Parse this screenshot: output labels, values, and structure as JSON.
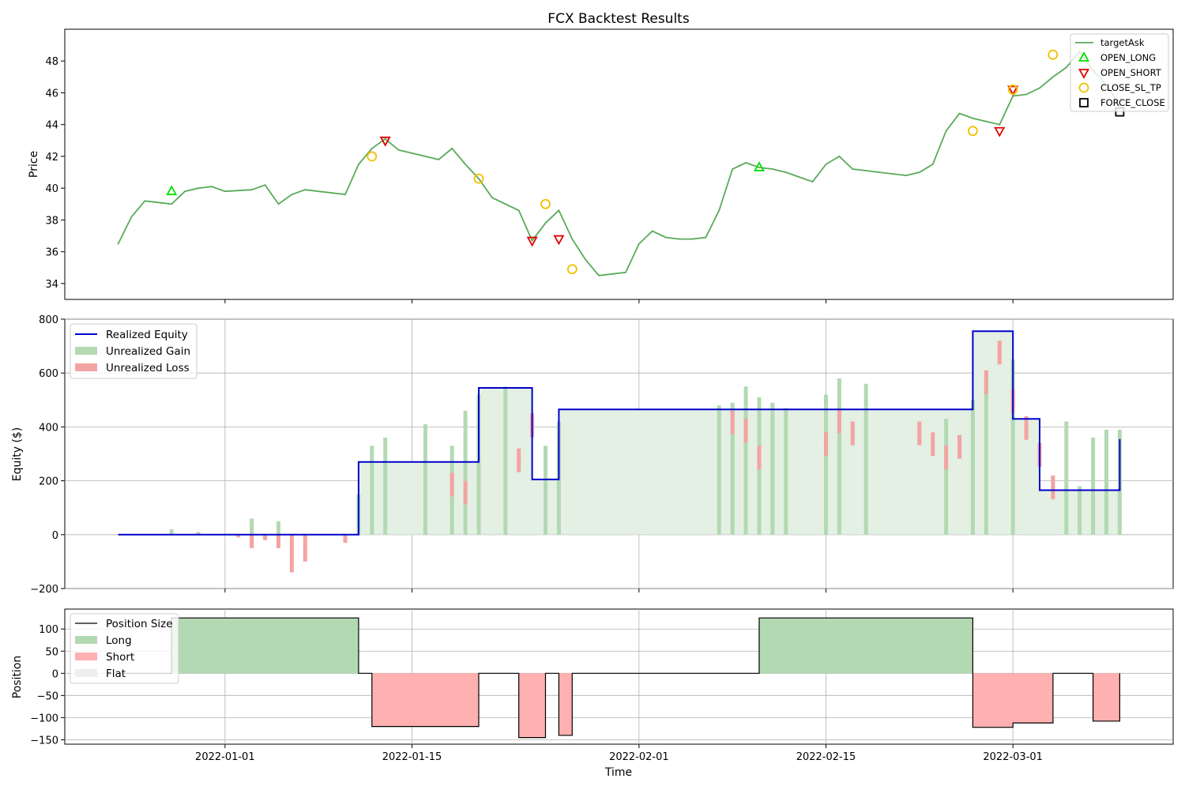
{
  "figure": {
    "title": "FCX Backtest Results",
    "xlabel": "Time"
  },
  "colors": {
    "price": "#5aaa5a",
    "long_marker": "#00e000",
    "short_marker": "#e00000",
    "close_marker": "#f0c000",
    "force_marker": "#000000",
    "equity": "#0000cc",
    "gain_fill": "#b3d9b3",
    "loss_fill": "#f4a3a3",
    "base_fill": "#e3f0e3",
    "long_fill": "#b3d9b3",
    "short_fill": "#ffb0b0",
    "flat_fill": "#eeeeee",
    "grid": "#b0b0b0"
  },
  "chart_data": [
    {
      "type": "line",
      "panel": "price",
      "ylabel": "Price",
      "ylim": [
        33,
        50
      ],
      "yticks": [
        34,
        36,
        38,
        40,
        42,
        44,
        46,
        48
      ],
      "grid": false,
      "legend_position": "top-right",
      "x_is_date": true,
      "xlim": [
        "2021-12-20",
        "2022-03-13"
      ],
      "series": [
        {
          "name": "targetAsk",
          "x": [
            "2021-12-24",
            "2021-12-25",
            "2021-12-26",
            "2021-12-27",
            "2021-12-28",
            "2021-12-29",
            "2021-12-30",
            "2021-12-31",
            "2022-01-01",
            "2022-01-02",
            "2022-01-03",
            "2022-01-04",
            "2022-01-05",
            "2022-01-06",
            "2022-01-07",
            "2022-01-08",
            "2022-01-09",
            "2022-01-10",
            "2022-01-11",
            "2022-01-12",
            "2022-01-13",
            "2022-01-14",
            "2022-01-15",
            "2022-01-16",
            "2022-01-17",
            "2022-01-18",
            "2022-01-19",
            "2022-01-20",
            "2022-01-21",
            "2022-01-22",
            "2022-01-23",
            "2022-01-24",
            "2022-01-25",
            "2022-01-26",
            "2022-01-27",
            "2022-01-28",
            "2022-01-29",
            "2022-01-30",
            "2022-01-31",
            "2022-02-01",
            "2022-02-02",
            "2022-02-03",
            "2022-02-04",
            "2022-02-05",
            "2022-02-06",
            "2022-02-07",
            "2022-02-08",
            "2022-02-09",
            "2022-02-10",
            "2022-02-11",
            "2022-02-12",
            "2022-02-13",
            "2022-02-14",
            "2022-02-15",
            "2022-02-16",
            "2022-02-17",
            "2022-02-18",
            "2022-02-19",
            "2022-02-20",
            "2022-02-21",
            "2022-02-22",
            "2022-02-23",
            "2022-02-24",
            "2022-02-25",
            "2022-02-26",
            "2022-02-27",
            "2022-02-28",
            "2022-03-01",
            "2022-03-02",
            "2022-03-03",
            "2022-03-04",
            "2022-03-05",
            "2022-03-06",
            "2022-03-07",
            "2022-03-08",
            "2022-03-09"
          ],
          "y": [
            36.5,
            38.2,
            39.2,
            39.1,
            39.0,
            39.8,
            40.0,
            40.1,
            39.8,
            39.85,
            39.9,
            40.2,
            39.0,
            39.6,
            39.9,
            39.8,
            39.7,
            39.6,
            41.5,
            42.5,
            43.1,
            42.4,
            42.2,
            42.0,
            41.8,
            42.5,
            41.5,
            40.6,
            39.4,
            39.0,
            38.6,
            36.7,
            37.8,
            38.6,
            36.8,
            35.5,
            34.5,
            34.6,
            34.7,
            36.5,
            37.3,
            36.9,
            36.8,
            36.8,
            36.9,
            38.6,
            41.2,
            41.6,
            41.3,
            41.2,
            41.0,
            40.7,
            40.4,
            41.5,
            42.0,
            41.2,
            41.1,
            41.0,
            40.9,
            40.8,
            41.0,
            41.5,
            43.6,
            44.7,
            44.4,
            44.2,
            44.0,
            45.8,
            45.9,
            46.3,
            47.0,
            47.6,
            48.6,
            47.4,
            46.5,
            45.2
          ]
        }
      ],
      "markers": [
        {
          "name": "OPEN_LONG",
          "x": [
            "2021-12-28",
            "2022-02-10"
          ],
          "y": [
            39.8,
            41.3
          ]
        },
        {
          "name": "OPEN_SHORT",
          "x": [
            "2022-01-13",
            "2022-01-24",
            "2022-01-26",
            "2022-02-28",
            "2022-03-01"
          ],
          "y": [
            43.0,
            36.7,
            36.8,
            43.6,
            46.2
          ]
        },
        {
          "name": "CLOSE_SL_TP",
          "x": [
            "2022-01-12",
            "2022-01-20",
            "2022-01-25",
            "2022-01-27",
            "2022-02-26",
            "2022-03-01",
            "2022-03-04"
          ],
          "y": [
            42.0,
            40.6,
            39.0,
            34.9,
            43.6,
            46.2,
            48.4
          ]
        },
        {
          "name": "FORCE_CLOSE",
          "x": [
            "2022-03-09"
          ],
          "y": [
            44.8
          ]
        }
      ]
    },
    {
      "type": "area",
      "panel": "equity",
      "ylabel": "Equity ($)",
      "ylim": [
        -200,
        800
      ],
      "yticks": [
        -200,
        0,
        200,
        400,
        600,
        800
      ],
      "grid": true,
      "legend_position": "top-left",
      "x_is_date": true,
      "series": [
        {
          "name": "Realized Equity",
          "x": [
            "2021-12-24",
            "2022-01-11",
            "2022-01-11",
            "2022-01-20",
            "2022-01-20",
            "2022-01-23",
            "2022-01-23",
            "2022-01-24",
            "2022-01-24",
            "2022-01-26",
            "2022-01-26",
            "2022-02-26",
            "2022-02-26",
            "2022-03-01",
            "2022-03-01",
            "2022-03-03",
            "2022-03-03",
            "2022-03-09",
            "2022-03-09"
          ],
          "y": [
            0,
            0,
            270,
            270,
            545,
            545,
            545,
            545,
            205,
            205,
            465,
            465,
            755,
            755,
            430,
            430,
            165,
            165,
            355
          ]
        },
        {
          "name": "Unrealized Gain",
          "x": [
            "2021-12-28",
            "2021-12-30",
            "2022-01-02",
            "2022-01-03",
            "2022-01-05",
            "2022-01-11",
            "2022-01-12",
            "2022-01-13",
            "2022-01-16",
            "2022-01-18",
            "2022-01-19",
            "2022-01-20",
            "2022-01-22",
            "2022-01-25",
            "2022-01-26",
            "2022-02-07",
            "2022-02-08",
            "2022-02-09",
            "2022-02-10",
            "2022-02-11",
            "2022-02-12",
            "2022-02-15",
            "2022-02-16",
            "2022-02-18",
            "2022-02-24",
            "2022-02-26",
            "2022-02-27",
            "2022-03-01",
            "2022-03-05",
            "2022-03-06",
            "2022-03-07",
            "2022-03-08",
            "2022-03-09"
          ],
          "y": [
            20,
            10,
            0,
            60,
            50,
            150,
            330,
            360,
            410,
            330,
            460,
            520,
            550,
            330,
            420,
            480,
            490,
            550,
            510,
            490,
            470,
            520,
            580,
            560,
            430,
            500,
            600,
            650,
            420,
            180,
            360,
            390,
            390
          ]
        },
        {
          "name": "Unrealized Loss",
          "x": [
            "2022-01-02",
            "2022-01-03",
            "2022-01-04",
            "2022-01-05",
            "2022-01-06",
            "2022-01-07",
            "2022-01-10",
            "2022-01-18",
            "2022-01-19",
            "2022-01-23",
            "2022-01-24",
            "2022-02-08",
            "2022-02-09",
            "2022-02-10",
            "2022-02-15",
            "2022-02-16",
            "2022-02-17",
            "2022-02-22",
            "2022-02-23",
            "2022-02-24",
            "2022-02-25",
            "2022-02-27",
            "2022-02-28",
            "2022-03-01",
            "2022-03-02",
            "2022-03-03",
            "2022-03-04"
          ],
          "y": [
            -10,
            -50,
            -20,
            -50,
            -140,
            -100,
            -30,
            230,
            200,
            320,
            450,
            460,
            430,
            330,
            380,
            465,
            420,
            420,
            380,
            330,
            370,
            610,
            720,
            540,
            440,
            340,
            220
          ]
        }
      ]
    },
    {
      "type": "area",
      "panel": "position",
      "ylabel": "Position",
      "ylim": [
        -160,
        145
      ],
      "yticks": [
        -150,
        -100,
        -50,
        0,
        50,
        100
      ],
      "grid": true,
      "legend_position": "top-left",
      "x_is_date": true,
      "xtick_labels": [
        "2022-01-01",
        "2022-01-15",
        "2022-02-01",
        "2022-02-15",
        "2022-03-01"
      ],
      "series": [
        {
          "name": "Position Size",
          "x": [
            "2021-12-24",
            "2021-12-28",
            "2021-12-28",
            "2022-01-11",
            "2022-01-11",
            "2022-01-12",
            "2022-01-12",
            "2022-01-20",
            "2022-01-20",
            "2022-01-23",
            "2022-01-23",
            "2022-01-25",
            "2022-01-25",
            "2022-01-26",
            "2022-01-26",
            "2022-01-27",
            "2022-01-27",
            "2022-02-10",
            "2022-02-10",
            "2022-02-26",
            "2022-02-26",
            "2022-03-01",
            "2022-03-01",
            "2022-03-04",
            "2022-03-04",
            "2022-03-07",
            "2022-03-07",
            "2022-03-09",
            "2022-03-09"
          ],
          "y": [
            0,
            0,
            125,
            125,
            0,
            0,
            -120,
            -120,
            0,
            0,
            -145,
            -145,
            0,
            0,
            -140,
            -140,
            0,
            0,
            125,
            125,
            -122,
            -122,
            -112,
            -112,
            0,
            0,
            -108,
            -108,
            0
          ]
        }
      ],
      "legend": [
        "Position Size",
        "Long",
        "Short",
        "Flat"
      ]
    }
  ]
}
